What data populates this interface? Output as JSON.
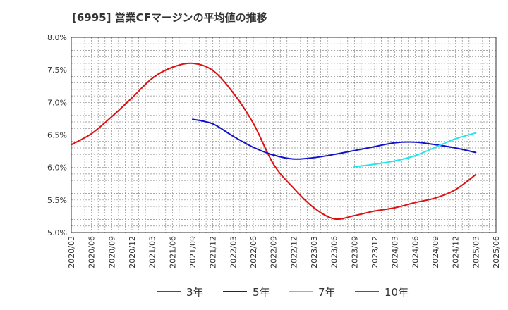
{
  "title": "[6995]  営業CFマージンの平均値の推移",
  "chart_data": {
    "type": "line",
    "title": "[6995]  営業CFマージンの平均値の推移",
    "xlabel": "",
    "ylabel": "",
    "ylim": [
      5.0,
      8.0
    ],
    "yticks": [
      "5.0%",
      "5.5%",
      "6.0%",
      "6.5%",
      "7.0%",
      "7.5%",
      "8.0%"
    ],
    "ytick_values": [
      5.0,
      5.5,
      6.0,
      6.5,
      7.0,
      7.5,
      8.0
    ],
    "xticks": [
      "2020/03",
      "2020/06",
      "2020/09",
      "2020/12",
      "2021/03",
      "2021/06",
      "2021/09",
      "2021/12",
      "2022/03",
      "2022/06",
      "2022/09",
      "2022/12",
      "2023/03",
      "2023/06",
      "2023/09",
      "2023/12",
      "2024/03",
      "2024/06",
      "2024/09",
      "2024/12",
      "2025/03",
      "2025/06"
    ],
    "grid": true,
    "legend_position": "bottom",
    "series": [
      {
        "name": "3年",
        "color": "#dd1111",
        "x": [
          "2020/03",
          "2020/06",
          "2020/09",
          "2020/12",
          "2021/03",
          "2021/06",
          "2021/09",
          "2021/12",
          "2022/03",
          "2022/06",
          "2022/09",
          "2022/12",
          "2023/03",
          "2023/06",
          "2023/09",
          "2023/12",
          "2024/03",
          "2024/06",
          "2024/09",
          "2024/12",
          "2025/03"
        ],
        "values": [
          6.35,
          6.52,
          6.78,
          7.07,
          7.37,
          7.54,
          7.6,
          7.49,
          7.15,
          6.68,
          6.05,
          5.68,
          5.38,
          5.21,
          5.26,
          5.33,
          5.38,
          5.46,
          5.53,
          5.66,
          5.89
        ]
      },
      {
        "name": "5年",
        "color": "#1111cc",
        "x": [
          "2021/09",
          "2021/12",
          "2022/03",
          "2022/06",
          "2022/09",
          "2022/12",
          "2023/03",
          "2023/06",
          "2023/09",
          "2023/12",
          "2024/03",
          "2024/06",
          "2024/09",
          "2024/12",
          "2025/03"
        ],
        "values": [
          6.74,
          6.67,
          6.48,
          6.31,
          6.19,
          6.13,
          6.15,
          6.2,
          6.26,
          6.32,
          6.38,
          6.39,
          6.35,
          6.3,
          6.23
        ]
      },
      {
        "name": "7年",
        "color": "#22e5ee",
        "x": [
          "2023/09",
          "2023/12",
          "2024/03",
          "2024/06",
          "2024/09",
          "2024/12",
          "2025/03"
        ],
        "values": [
          6.01,
          6.05,
          6.1,
          6.18,
          6.31,
          6.44,
          6.53
        ]
      },
      {
        "name": "10年",
        "color": "#118811",
        "x": [],
        "values": []
      }
    ]
  }
}
